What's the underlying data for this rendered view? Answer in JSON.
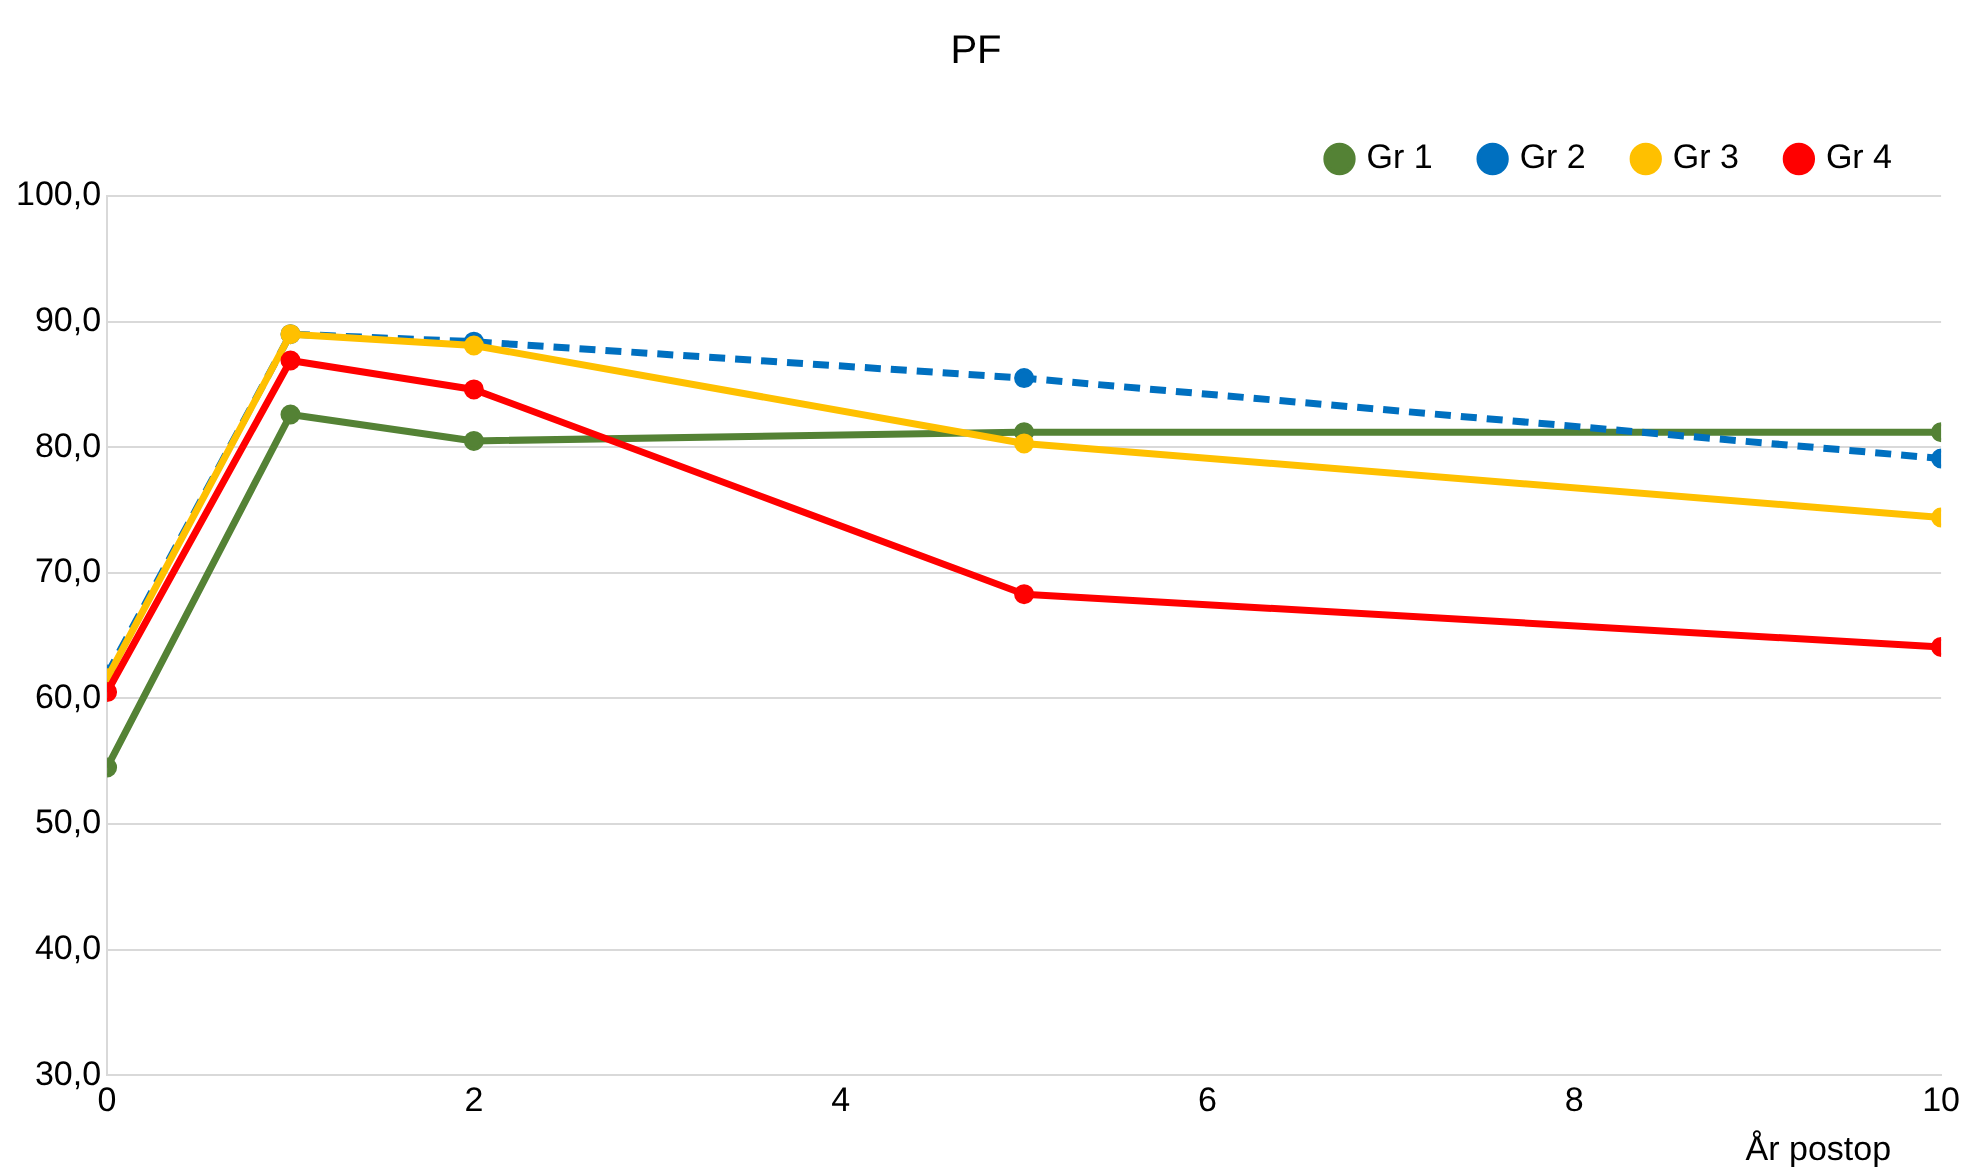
{
  "chart_data": {
    "type": "line",
    "title": "PF",
    "xlabel": "År postop",
    "x": [
      0,
      1,
      2,
      5,
      10
    ],
    "xlim": [
      0,
      10
    ],
    "xticks": [
      0,
      2,
      4,
      6,
      8,
      10
    ],
    "ylim": [
      30,
      100
    ],
    "yticks": [
      {
        "value": 30,
        "label": "30,0"
      },
      {
        "value": 40,
        "label": "40,0"
      },
      {
        "value": 50,
        "label": "50,0"
      },
      {
        "value": 60,
        "label": "60,0"
      },
      {
        "value": 70,
        "label": "70,0"
      },
      {
        "value": 80,
        "label": "80,0"
      },
      {
        "value": 90,
        "label": "90,0"
      },
      {
        "value": 100,
        "label": "100,0"
      }
    ],
    "grid": "y",
    "legend": "top",
    "marker": "circle",
    "series": [
      {
        "name": "Gr 1",
        "color": "#548235",
        "values": [
          54.5,
          82.6,
          80.5,
          81.2,
          81.2
        ]
      },
      {
        "name": "Gr 2",
        "color": "#0070c0",
        "line_style": "dashed",
        "values": [
          61.9,
          89.0,
          88.4,
          85.5,
          79.1
        ]
      },
      {
        "name": "Gr 3",
        "color": "#ffc000",
        "values": [
          61.6,
          89.0,
          88.1,
          80.3,
          74.4
        ]
      },
      {
        "name": "Gr 4",
        "color": "#ff0000",
        "values": [
          60.5,
          86.9,
          84.6,
          68.3,
          64.1
        ]
      }
    ]
  }
}
